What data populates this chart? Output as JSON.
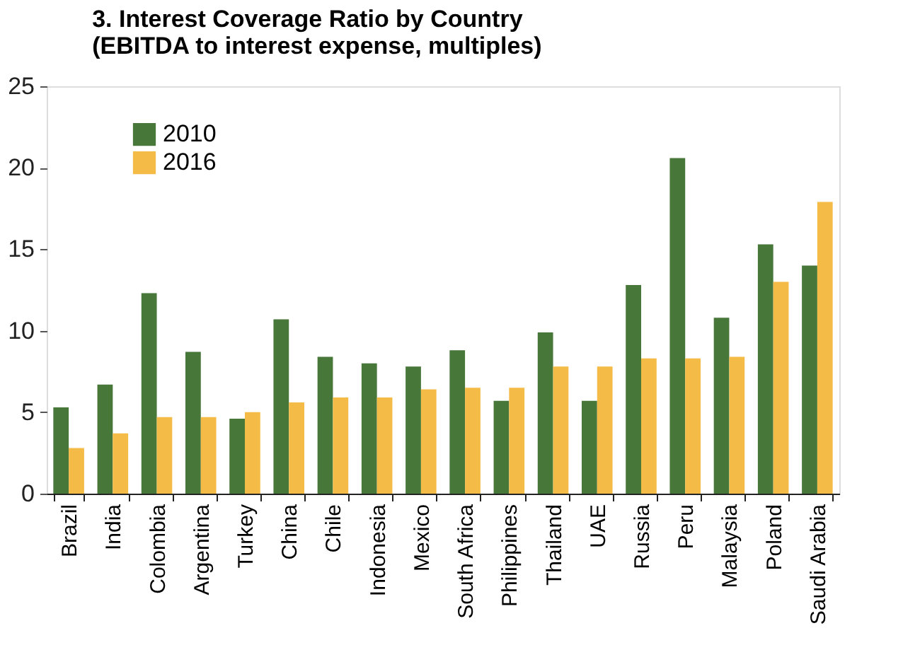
{
  "chart_data": {
    "type": "bar",
    "title": [
      "3. Interest Coverage Ratio by Country",
      "(EBITDA to interest expense, multiples)"
    ],
    "categories": [
      "Brazil",
      "India",
      "Colombia",
      "Argentina",
      "Turkey",
      "China",
      "Chile",
      "Indonesia",
      "Mexico",
      "South Africa",
      "Philippines",
      "Thailand",
      "UAE",
      "Russia",
      "Peru",
      "Malaysia",
      "Poland",
      "Saudi Arabia"
    ],
    "series": [
      {
        "name": "2010",
        "color": "#48773a",
        "values": [
          5.3,
          6.7,
          12.3,
          8.7,
          4.6,
          10.7,
          8.4,
          8.0,
          7.8,
          8.8,
          5.7,
          9.9,
          5.7,
          12.8,
          20.6,
          10.8,
          15.3,
          14.0
        ]
      },
      {
        "name": "2016",
        "color": "#f5bb47",
        "values": [
          2.8,
          3.7,
          4.7,
          4.7,
          5.0,
          5.6,
          5.9,
          5.9,
          6.4,
          6.5,
          6.5,
          7.8,
          7.8,
          8.3,
          8.3,
          8.4,
          13.0,
          17.9
        ]
      }
    ],
    "ylim": [
      0,
      25
    ],
    "yticks": [
      0,
      5,
      10,
      15,
      20,
      25
    ],
    "grid": false,
    "legend": "top left"
  }
}
